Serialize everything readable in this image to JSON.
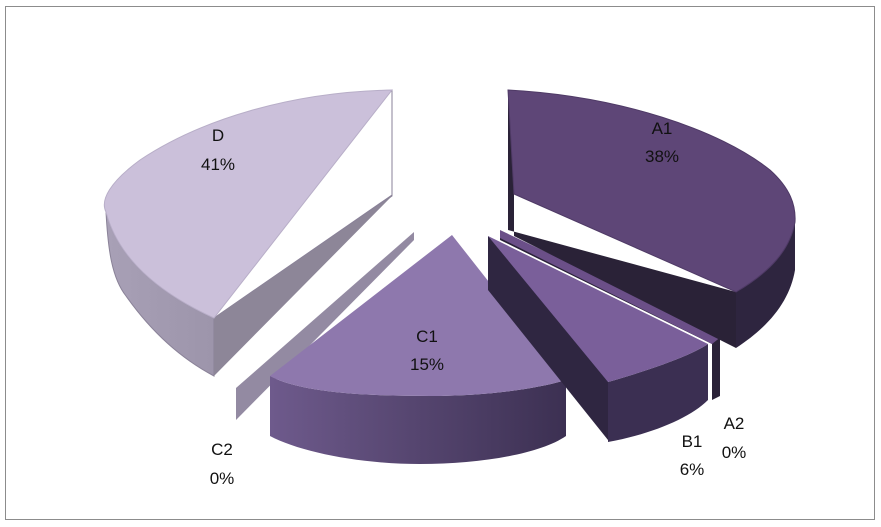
{
  "chart_data": {
    "type": "pie",
    "style": "3d-exploded",
    "slices": [
      {
        "label": "A1",
        "value": 38,
        "percent": "38%",
        "color": "#5e4677"
      },
      {
        "label": "A2",
        "value": 0.4,
        "percent": "0%",
        "color": "#6b4f88"
      },
      {
        "label": "B1",
        "value": 6,
        "percent": "6%",
        "color": "#7a5f9a"
      },
      {
        "label": "C1",
        "value": 15,
        "percent": "15%",
        "color": "#8e78ad"
      },
      {
        "label": "C2",
        "value": 0.2,
        "percent": "0%",
        "color": "#a394bd"
      },
      {
        "label": "D",
        "value": 41,
        "percent": "41%",
        "color": "#cbc0da"
      }
    ]
  }
}
